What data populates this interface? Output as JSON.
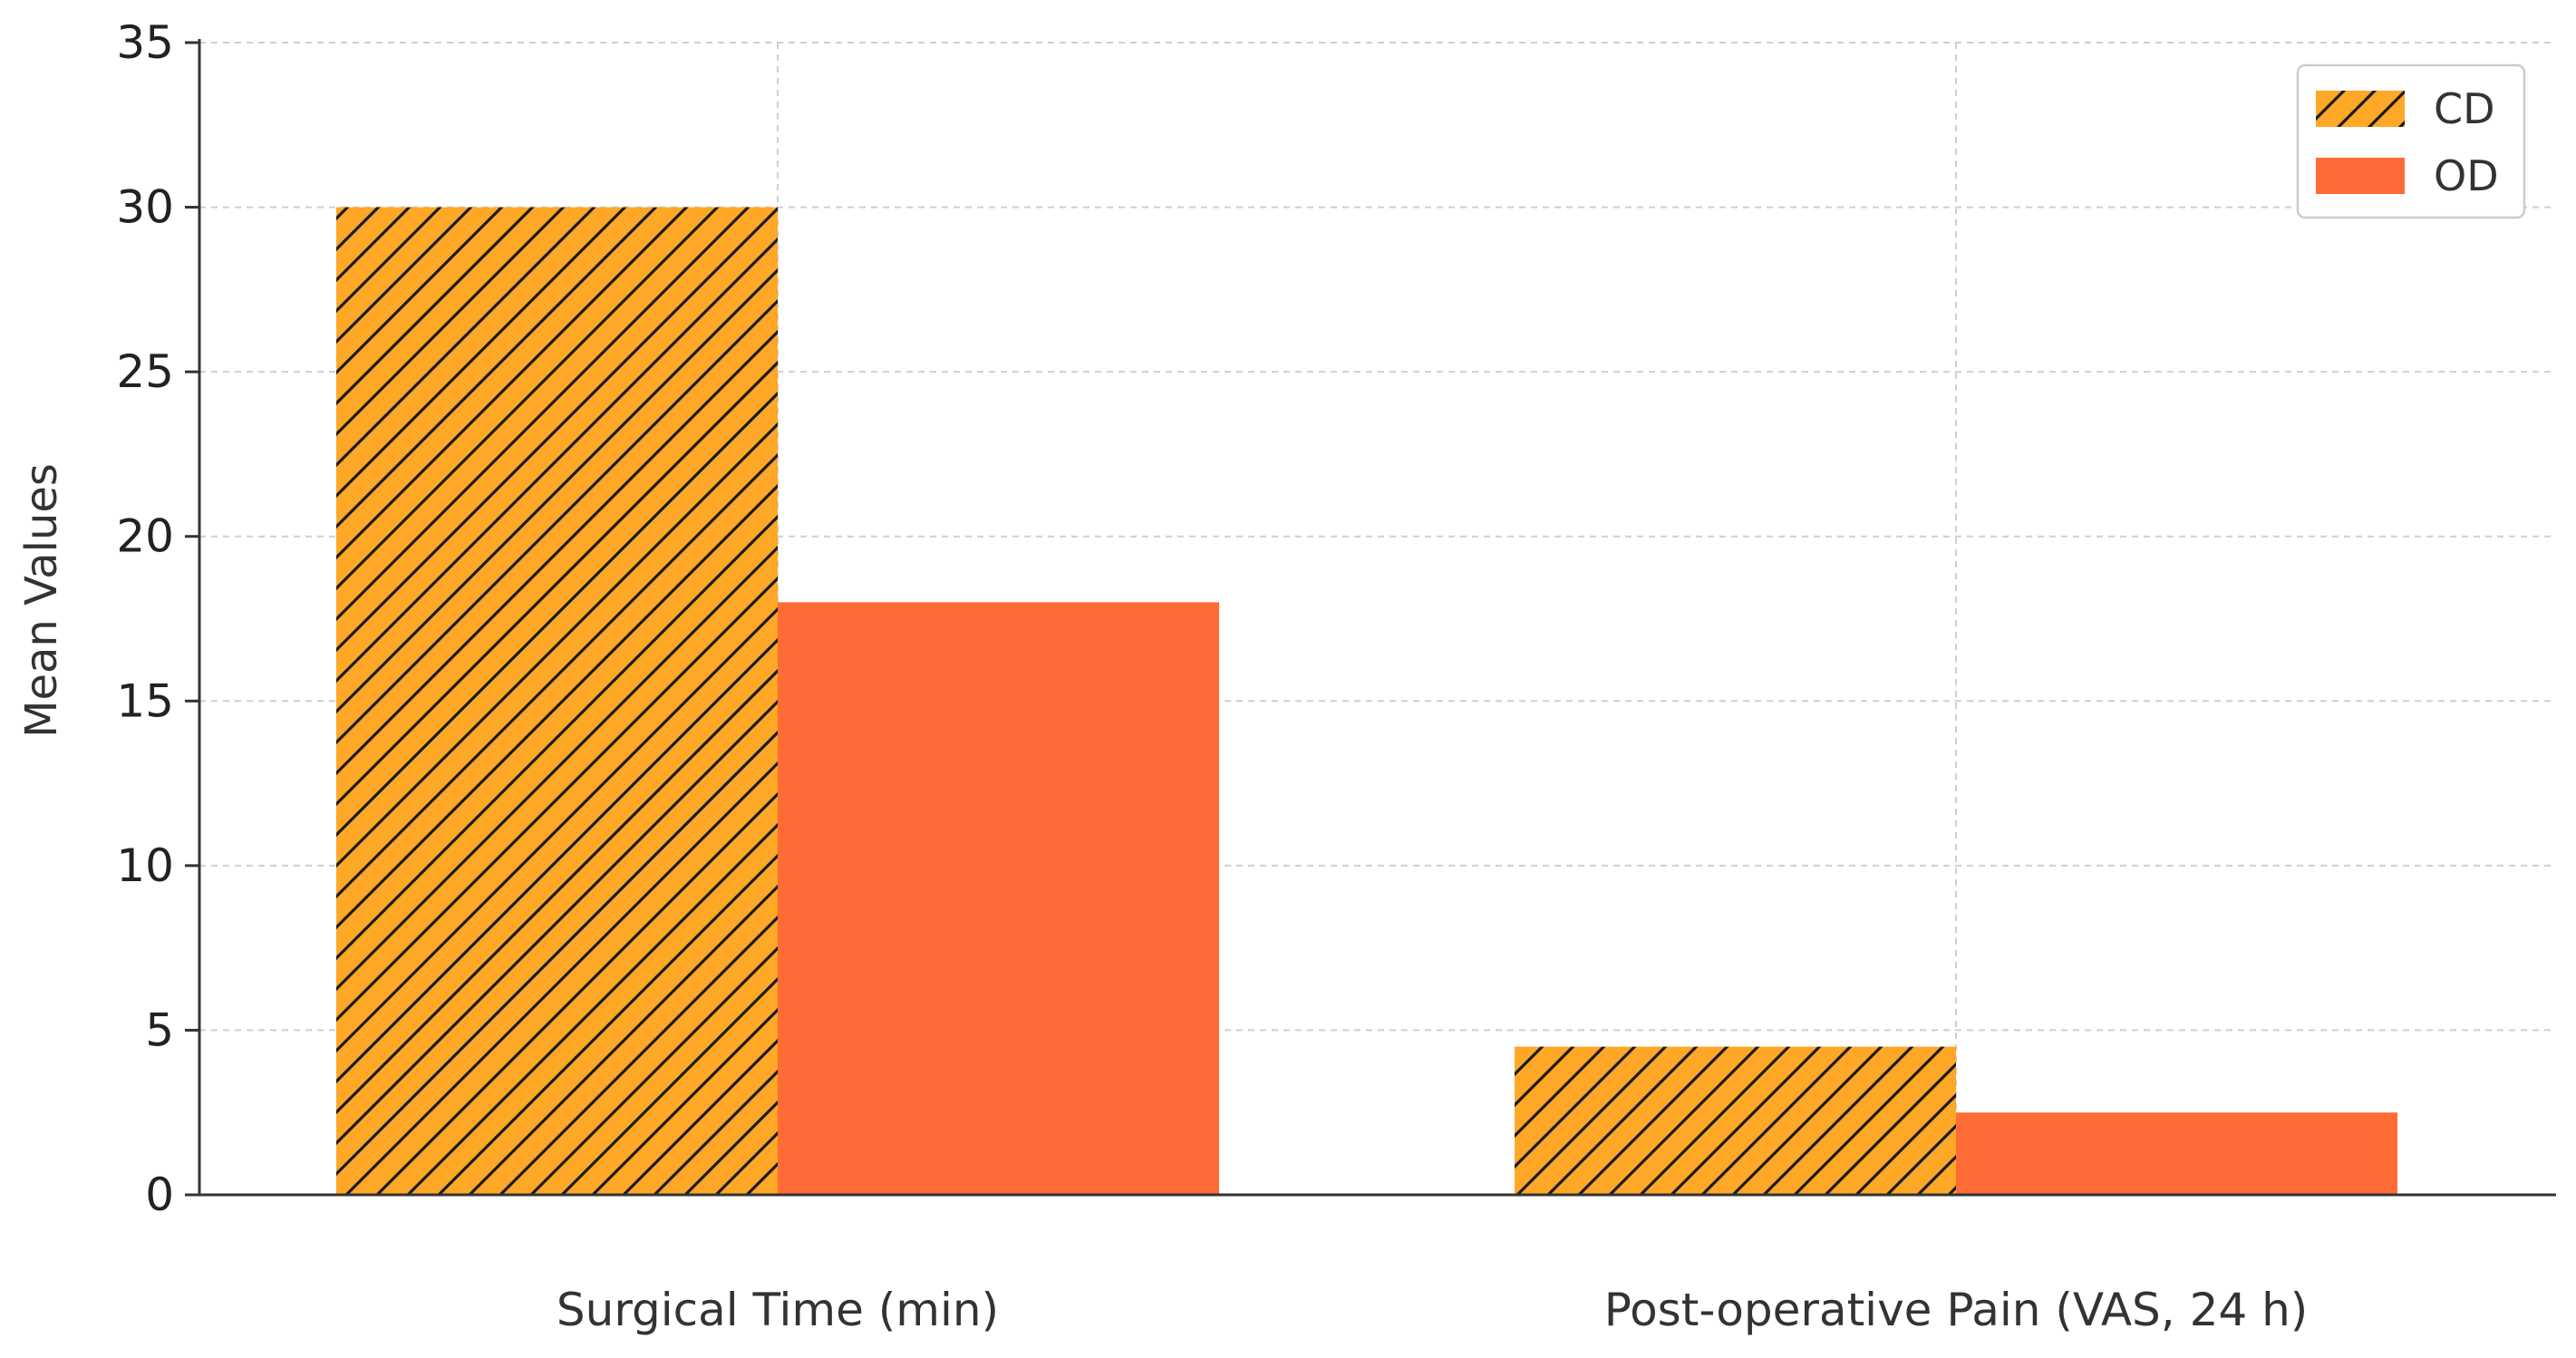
{
  "chart_data": {
    "type": "bar",
    "title": "",
    "xlabel": "",
    "ylabel": "Mean Values",
    "categories": [
      "Surgical Time (min)",
      "Post-operative Pain (VAS, 24 h)"
    ],
    "series": [
      {
        "name": "CD",
        "values": [
          30,
          4.5
        ],
        "color": "#FFA726",
        "hatch": true
      },
      {
        "name": "OD",
        "values": [
          18,
          2.5
        ],
        "color": "#FF6B35",
        "hatch": false
      }
    ],
    "ylim": [
      0,
      35
    ],
    "yticks": [
      0,
      5,
      10,
      15,
      20,
      25,
      30,
      35
    ],
    "grid": true,
    "legend_position": "top-right"
  }
}
